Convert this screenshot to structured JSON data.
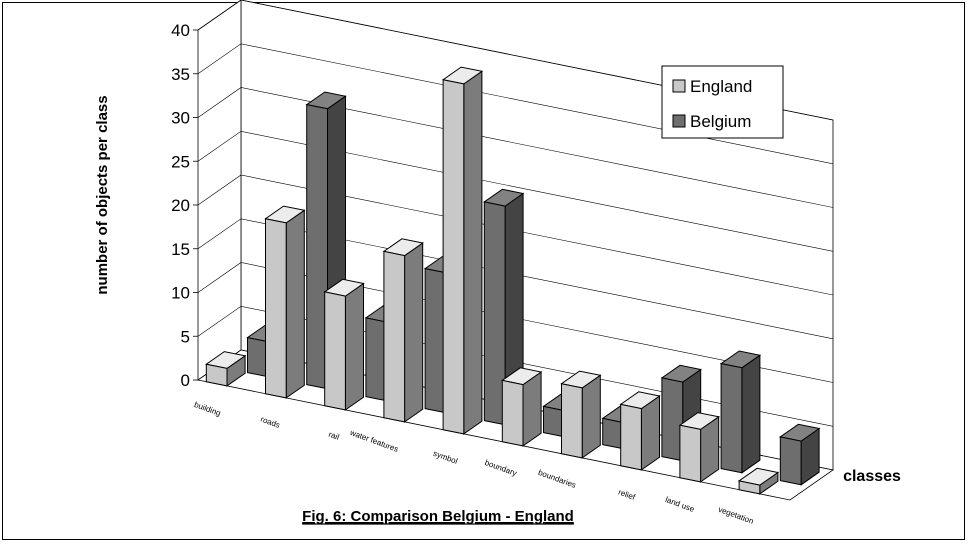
{
  "chart_data": {
    "type": "bar",
    "title": "Fig. 6: Comparison Belgium - England",
    "xlabel": "classes",
    "ylabel": "number of objects per class",
    "ylim": [
      0,
      40
    ],
    "yticks": [
      0,
      5,
      10,
      15,
      20,
      25,
      30,
      35,
      40
    ],
    "grid": true,
    "legend_position": "top-right",
    "categories": [
      "building",
      "roads",
      "rail",
      "water features",
      "symbol",
      "boundary",
      "boundaries",
      "relief",
      "land use",
      "vegetation"
    ],
    "series": [
      {
        "name": "England",
        "color": "#c8c8c8",
        "values": [
          2,
          20,
          13,
          19,
          40,
          7,
          8,
          7,
          6,
          1
        ]
      },
      {
        "name": "Belgium",
        "color": "#6e6e6e",
        "values": [
          4,
          32,
          9,
          16,
          25,
          3,
          3,
          9,
          12,
          5
        ]
      }
    ]
  }
}
